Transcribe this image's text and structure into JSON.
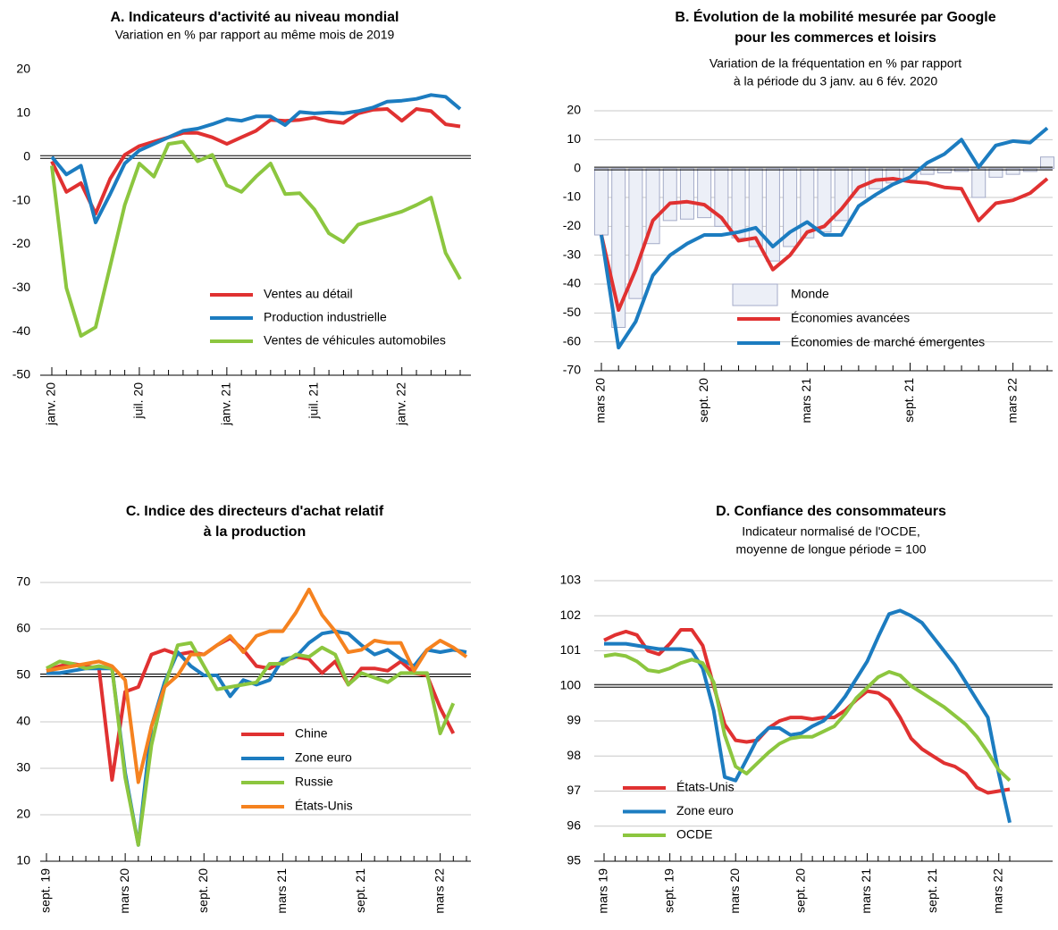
{
  "chart_data": [
    {
      "type": "line",
      "title": [
        "A. Indicateurs d'activité au niveau mondial"
      ],
      "subtitle": [
        "Variation en % par rapport au même mois de 2019"
      ],
      "categories": [
        "janv. 20",
        null,
        null,
        null,
        null,
        null,
        "juil. 20",
        null,
        null,
        null,
        null,
        null,
        "janv. 21",
        null,
        null,
        null,
        null,
        null,
        "juil. 21",
        null,
        null,
        null,
        null,
        null,
        "janv. 22",
        null,
        null,
        null,
        null
      ],
      "ylim": [
        -50,
        20
      ],
      "yticks": [
        20,
        10,
        0,
        -10,
        -20,
        -30,
        -40,
        -50
      ],
      "grid": false,
      "reference_line": 0,
      "legend": "lower right",
      "series": [
        {
          "name": "Ventes au détail",
          "type": "line",
          "color": "#e03131",
          "values": [
            -1,
            -8,
            -6,
            -13,
            -5,
            0.5,
            2.5,
            3.5,
            4.5,
            5.5,
            5.5,
            4.5,
            3,
            4.5,
            6,
            8.5,
            8.3,
            8.5,
            9,
            8.2,
            7.8,
            10,
            10.8,
            11,
            8.3,
            11,
            10.5,
            7.5,
            7
          ]
        },
        {
          "name": "Production industrielle",
          "type": "line",
          "color": "#1c7cc0",
          "values": [
            0,
            -4,
            -2,
            -15,
            -8.5,
            -1.5,
            1.5,
            3,
            4.5,
            6,
            6.5,
            7.5,
            8.7,
            8.3,
            9.3,
            9.3,
            7.3,
            10.3,
            10,
            10.2,
            10,
            10.5,
            11.3,
            12.7,
            12.9,
            13.3,
            14.2,
            13.8,
            11
          ]
        },
        {
          "name": "Ventes de véhicules automobiles",
          "type": "line",
          "color": "#8cc63f",
          "values": [
            -2,
            -30,
            -41,
            -39,
            -25,
            -11,
            -1.5,
            -4.5,
            3,
            3.5,
            -1,
            0.5,
            -6.5,
            -8,
            -4.5,
            -1.5,
            -8.5,
            -8.3,
            -12,
            -17.5,
            -19.5,
            -15.5,
            -14.5,
            -13.5,
            -12.5,
            -11,
            -9.3,
            -22,
            -28
          ]
        }
      ]
    },
    {
      "type": "combo",
      "title": [
        "B. Évolution de la mobilité mesurée par Google",
        "pour les commerces et loisirs"
      ],
      "subtitle": [
        "Variation de la fréquentation en % par rapport",
        "à la période du 3 janv. au 6 fév. 2020"
      ],
      "categories": [
        "mars 20",
        null,
        null,
        null,
        null,
        null,
        "sept. 20",
        null,
        null,
        null,
        null,
        null,
        "mars 21",
        null,
        null,
        null,
        null,
        null,
        "sept. 21",
        null,
        null,
        null,
        null,
        null,
        "mars 22",
        null,
        null
      ],
      "ylim": [
        -70,
        20
      ],
      "yticks": [
        20,
        10,
        0,
        -10,
        -20,
        -30,
        -40,
        -50,
        -60,
        -70
      ],
      "grid": true,
      "reference_line": 0,
      "legend": "lower right",
      "series": [
        {
          "name": "Monde",
          "type": "bar",
          "color": "#eceff7",
          "values": [
            -23,
            -55,
            -45,
            -26,
            -18,
            -17.5,
            -17,
            -20,
            -24,
            -27,
            -32,
            -27,
            -24,
            -22,
            -18,
            -10,
            -7,
            -5,
            -4,
            -2,
            -1.5,
            -1,
            -10,
            -3,
            -2,
            -1,
            4
          ]
        },
        {
          "name": "Économies avancées",
          "type": "line",
          "color": "#e03131",
          "values": [
            -23,
            -49,
            -35,
            -18,
            -12,
            -11.5,
            -12.5,
            -17,
            -25,
            -24,
            -35,
            -30,
            -22,
            -20,
            -14,
            -6.5,
            -4,
            -3.5,
            -4.5,
            -5,
            -6.5,
            -7,
            -18,
            -12,
            -11,
            -8.5,
            -3.5
          ]
        },
        {
          "name": "Économies de marché émergentes",
          "type": "line",
          "color": "#1c7cc0",
          "values": [
            -23,
            -62,
            -53,
            -37,
            -30,
            -26,
            -23,
            -23,
            -22,
            -20.5,
            -27,
            -22,
            -18.5,
            -23,
            -23,
            -13,
            -9,
            -5.5,
            -3,
            2,
            5,
            10,
            0.5,
            8,
            9.5,
            9,
            14
          ]
        }
      ]
    },
    {
      "type": "line",
      "title": [
        "C. Indice des directeurs d'achat relatif",
        "à la production"
      ],
      "subtitle": [],
      "categories": [
        "sept. 19",
        null,
        null,
        null,
        null,
        null,
        "mars 20",
        null,
        null,
        null,
        null,
        null,
        "sept. 20",
        null,
        null,
        null,
        null,
        null,
        "mars 21",
        null,
        null,
        null,
        null,
        null,
        "sept. 21",
        null,
        null,
        null,
        null,
        null,
        "mars 22",
        null,
        null
      ],
      "ylim": [
        10,
        70
      ],
      "yticks": [
        70,
        60,
        50,
        40,
        30,
        20,
        10
      ],
      "grid": true,
      "reference_line": 50,
      "legend": "lower right",
      "series": [
        {
          "name": "Chine",
          "type": "line",
          "color": "#e03131",
          "values": [
            51,
            52,
            52.5,
            52,
            51.5,
            27.5,
            46.5,
            47.5,
            54.5,
            55.5,
            54.5,
            55,
            54.5,
            56.5,
            58,
            55.5,
            52,
            51.5,
            53,
            54,
            53.5,
            50.5,
            53,
            48,
            51.5,
            51.5,
            51,
            53,
            50.5,
            50,
            43,
            37.5,
            null
          ]
        },
        {
          "name": "Zone euro",
          "type": "line",
          "color": "#1c7cc0",
          "values": [
            50.5,
            50.5,
            51,
            51.5,
            51.5,
            51.5,
            29,
            13.5,
            39,
            48.5,
            55,
            52,
            50,
            50,
            45.5,
            49,
            48,
            49,
            53.5,
            54,
            57,
            59,
            59.5,
            59,
            56.5,
            54.5,
            55.5,
            53.5,
            52,
            55.5,
            55,
            55.5,
            55
          ]
        },
        {
          "name": "Russie",
          "type": "line",
          "color": "#8cc63f",
          "values": [
            51.5,
            53,
            52.5,
            51.5,
            52,
            51.5,
            28,
            13.5,
            35,
            47.5,
            56.5,
            57,
            52,
            47,
            47.5,
            48,
            48.5,
            52.5,
            52.5,
            54.5,
            54,
            56,
            54.5,
            48,
            50.5,
            49.5,
            48.5,
            50.5,
            50.5,
            50.5,
            37.5,
            44,
            null
          ]
        },
        {
          "name": "États-Unis",
          "type": "line",
          "color": "#f5821f",
          "values": [
            51,
            51.5,
            52,
            52.5,
            53,
            52,
            49,
            27,
            39,
            47.5,
            50,
            54.5,
            54.5,
            56.5,
            58.5,
            55,
            58.5,
            59.5,
            59.5,
            63.5,
            68.5,
            63,
            59.5,
            55,
            55.5,
            57.5,
            57,
            57,
            51,
            55.5,
            57.5,
            56,
            54
          ]
        }
      ]
    },
    {
      "type": "line",
      "title": [
        "D. Confiance des consommateurs"
      ],
      "subtitle": [
        "Indicateur normalisé de l'OCDE,",
        "moyenne de longue période = 100"
      ],
      "categories": [
        "mars 19",
        null,
        null,
        null,
        null,
        null,
        "sept. 19",
        null,
        null,
        null,
        null,
        null,
        "mars 20",
        null,
        null,
        null,
        null,
        null,
        "sept. 20",
        null,
        null,
        null,
        null,
        null,
        "mars 21",
        null,
        null,
        null,
        null,
        null,
        "sept. 21",
        null,
        null,
        null,
        null,
        null,
        "mars 22",
        null
      ],
      "ylim": [
        95,
        103
      ],
      "yticks": [
        103,
        102,
        101,
        100,
        99,
        98,
        97,
        96,
        95
      ],
      "grid": true,
      "reference_line": 100,
      "legend": "lower left",
      "series": [
        {
          "name": "États-Unis",
          "type": "line",
          "color": "#e03131",
          "values": [
            101.3,
            101.45,
            101.55,
            101.45,
            101.0,
            100.9,
            101.2,
            101.6,
            101.6,
            101.15,
            100.0,
            98.9,
            98.45,
            98.4,
            98.45,
            98.8,
            99.0,
            99.1,
            99.1,
            99.05,
            99.1,
            99.1,
            99.3,
            99.6,
            99.85,
            99.8,
            99.6,
            99.1,
            98.5,
            98.2,
            98.0,
            97.8,
            97.7,
            97.5,
            97.1,
            96.95,
            97.0,
            97.05
          ]
        },
        {
          "name": "Zone euro",
          "type": "line",
          "color": "#1c7cc0",
          "values": [
            101.2,
            101.2,
            101.2,
            101.15,
            101.1,
            101.05,
            101.05,
            101.05,
            101.0,
            100.5,
            99.3,
            97.4,
            97.3,
            97.9,
            98.5,
            98.8,
            98.8,
            98.6,
            98.65,
            98.85,
            99.0,
            99.3,
            99.7,
            100.2,
            100.7,
            101.4,
            102.05,
            102.15,
            102.0,
            101.8,
            101.4,
            101.0,
            100.6,
            100.1,
            99.6,
            99.1,
            97.5,
            96.1
          ]
        },
        {
          "name": "OCDE",
          "type": "line",
          "color": "#8cc63f",
          "values": [
            100.85,
            100.9,
            100.85,
            100.7,
            100.45,
            100.4,
            100.5,
            100.65,
            100.75,
            100.65,
            100.1,
            98.6,
            97.7,
            97.5,
            97.8,
            98.1,
            98.35,
            98.5,
            98.55,
            98.55,
            98.7,
            98.85,
            99.2,
            99.65,
            99.95,
            100.25,
            100.4,
            100.3,
            100.0,
            99.8,
            99.6,
            99.4,
            99.15,
            98.9,
            98.55,
            98.1,
            97.6,
            97.3
          ]
        }
      ]
    }
  ]
}
